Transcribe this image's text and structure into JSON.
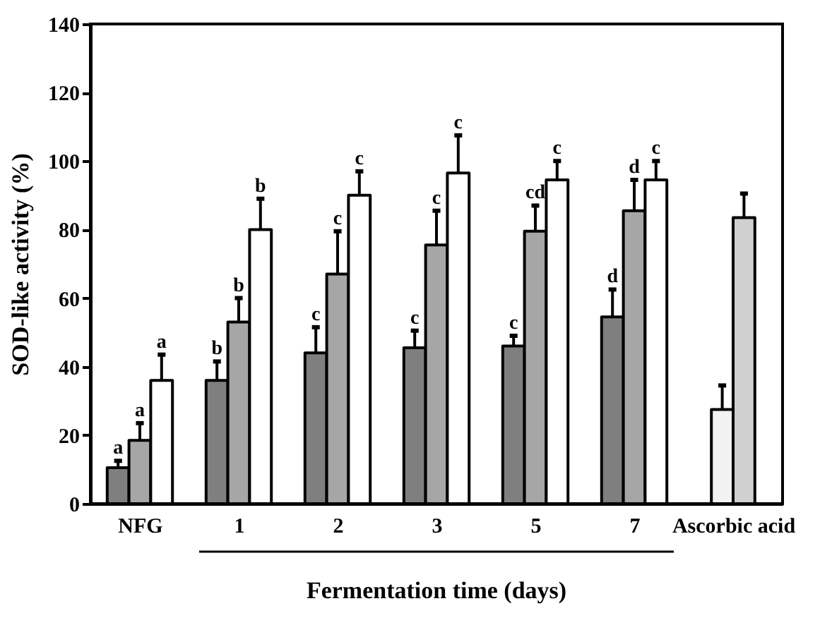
{
  "chart_data": {
    "type": "bar",
    "xlabel": "Fermentation time (days)",
    "ylabel": "SOD-like activity (%)",
    "categories": [
      "NFG",
      "1",
      "2",
      "3",
      "5",
      "7",
      "Ascorbic acid"
    ],
    "series": [
      {
        "color": "#7f7f7f",
        "values": [
          10.5,
          36,
          44,
          45.5,
          46,
          54.5,
          null
        ],
        "errors": [
          2,
          5.5,
          7.5,
          5,
          3,
          8,
          null
        ],
        "value_labels": [
          "a",
          "b",
          "c",
          "c",
          "c",
          "d",
          null
        ]
      },
      {
        "color": "#a6a6a6",
        "values": [
          18.5,
          53,
          67,
          75.5,
          79.5,
          85.5,
          null
        ],
        "errors": [
          5,
          7,
          12.5,
          10,
          7.5,
          9,
          null
        ],
        "value_labels": [
          "a",
          "b",
          "c",
          "c",
          "cd",
          "d",
          null
        ]
      },
      {
        "color": "#ffffff",
        "values": [
          36,
          80,
          90,
          96.5,
          94.5,
          94.5,
          null
        ],
        "errors": [
          7.5,
          9,
          7,
          11,
          5.5,
          5.5,
          null
        ],
        "value_labels": [
          "a",
          "b",
          "c",
          "c",
          "c",
          "c",
          null
        ]
      },
      {
        "color": "#f2f2f2",
        "values": [
          null,
          null,
          null,
          null,
          null,
          null,
          27.5
        ],
        "errors": [
          null,
          null,
          null,
          null,
          null,
          null,
          7
        ]
      },
      {
        "color": "#d0d0d0",
        "values": [
          null,
          null,
          null,
          null,
          null,
          null,
          83.5
        ],
        "errors": [
          null,
          null,
          null,
          null,
          null,
          null,
          7
        ]
      }
    ],
    "ylim": [
      0,
      140
    ],
    "yticks": [
      0,
      20,
      40,
      60,
      80,
      100,
      120,
      140
    ],
    "grid": false
  }
}
